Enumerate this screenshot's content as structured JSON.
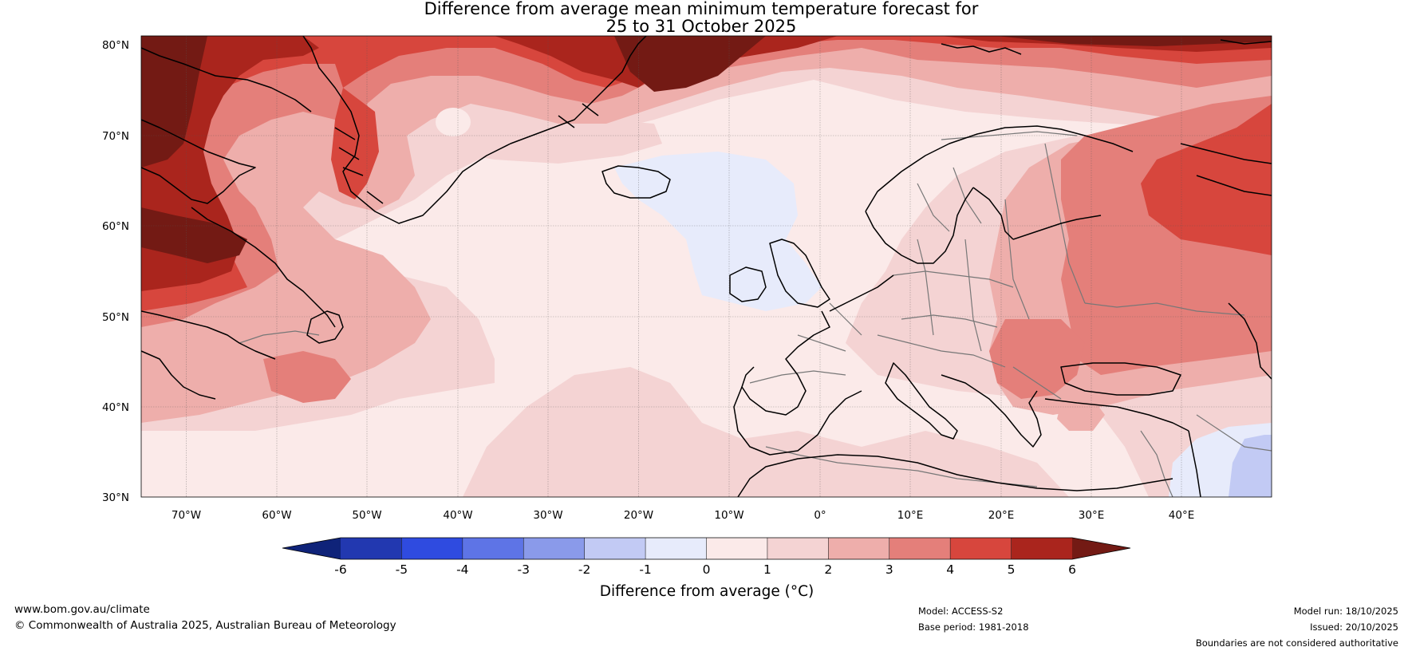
{
  "title": {
    "line1": "Difference from average mean minimum temperature forecast for",
    "line2": "25 to 31 October 2025"
  },
  "map": {
    "lat_labels": [
      "80°N",
      "70°N",
      "60°N",
      "50°N",
      "40°N",
      "30°N"
    ],
    "lon_labels": [
      "70°W",
      "60°W",
      "50°W",
      "40°W",
      "30°W",
      "20°W",
      "10°W",
      "0°",
      "10°E",
      "20°E",
      "30°E",
      "40°E"
    ],
    "lat_range": [
      30,
      81
    ],
    "lon_range": [
      -75,
      50
    ]
  },
  "legend": {
    "title": "Difference from average (°C)",
    "ticks": [
      "-6",
      "-5",
      "-4",
      "-3",
      "-2",
      "-1",
      "0",
      "1",
      "2",
      "3",
      "4",
      "5",
      "6"
    ],
    "low_extend_color": "#0f2379",
    "high_extend_color": "#731a14",
    "colors": [
      "#2238b0",
      "#2f4be0",
      "#5e74e6",
      "#8a9aea",
      "#c2caf4",
      "#e7ebfb",
      "#fbeae9",
      "#f4d3d3",
      "#eeaeab",
      "#e47f7a",
      "#d7463d",
      "#aa251d"
    ]
  },
  "footer": {
    "website": "www.bom.gov.au/climate",
    "copyright": "© Commonwealth of Australia 2025, Australian Bureau of Meteorology",
    "model": "Model: ACCESS-S2",
    "base_period": "Base period: 1981-2018",
    "model_run": "Model run: 18/10/2025",
    "issued": "Issued: 20/10/2025",
    "disclaimer": "Boundaries are not considered authoritative"
  }
}
